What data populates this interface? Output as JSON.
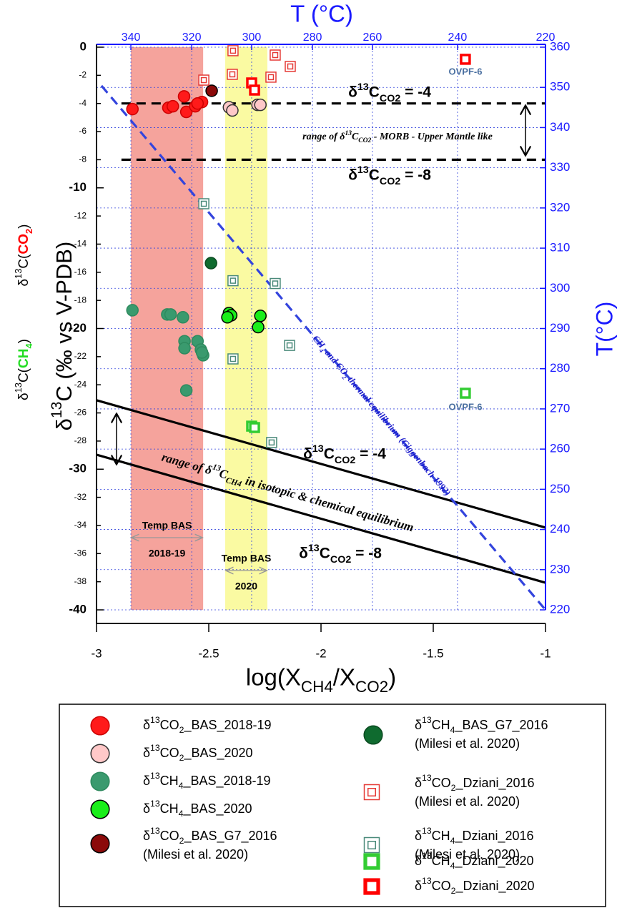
{
  "chart_data": {
    "type": "scatter",
    "x_label": "log(XCH4/XCO2)",
    "y_label": "δ13C (‰ vs V-PDB)",
    "y_label_ch4": [
      "δ13C(",
      "CH4",
      ")"
    ],
    "y_label_co2": [
      "δ13C(",
      "CO2",
      ")"
    ],
    "x2_label": "T (°C)",
    "y2_label": "T(°C)",
    "xlim": [
      -3,
      -1
    ],
    "xticks": [
      -3,
      -2.5,
      -2,
      -1.5,
      -1
    ],
    "ylim": [
      -40,
      0
    ],
    "yticks": [
      0,
      -2,
      -4,
      -6,
      -8,
      -10,
      -12,
      -14,
      -16,
      -18,
      -20,
      -22,
      -24,
      -26,
      -28,
      -30,
      -32,
      -34,
      -36,
      -38,
      -40
    ],
    "x2ticks": [
      {
        "value": -2.847,
        "label": "340"
      },
      {
        "value": -2.576,
        "label": "320"
      },
      {
        "value": -2.309,
        "label": "300"
      },
      {
        "value": -2.038,
        "label": "280"
      },
      {
        "value": -1.771,
        "label": "260"
      },
      {
        "value": -1.392,
        "label": "240"
      },
      {
        "value": -1.0,
        "label": "220"
      }
    ],
    "y2lim": [
      220,
      360
    ],
    "y2ticks": [
      220,
      230,
      240,
      250,
      260,
      270,
      280,
      290,
      300,
      310,
      320,
      330,
      340,
      350,
      360
    ],
    "grid": true,
    "bands": [
      {
        "x": [
          -2.847,
          -2.525
        ],
        "color": "#f5a39c",
        "label": [
          "Temp BAS",
          "2018-19"
        ]
      },
      {
        "x": [
          -2.427,
          -2.239
        ],
        "color": "#fafaa2",
        "label": [
          "Temp BAS",
          "2020"
        ]
      }
    ],
    "reference_lines": [
      {
        "x": [
          -2.889,
          -1
        ],
        "y": [
          -4,
          -4
        ],
        "color": "#000000",
        "style": "dashed"
      },
      {
        "x": [
          -2.889,
          -1
        ],
        "y": [
          -8,
          -8
        ],
        "color": "#000000",
        "style": "dashed"
      },
      {
        "x": [
          -3,
          -1
        ],
        "y": [
          -25.1,
          -34.15
        ],
        "color": "#000000",
        "style": "solid"
      },
      {
        "x": [
          -3,
          -1
        ],
        "y": [
          -28.97,
          -38.07
        ],
        "color": "#000000",
        "style": "solid"
      },
      {
        "x": [
          -2.978,
          -1
        ],
        "y": [
          -2.74,
          -40
        ],
        "color": "#3344dd",
        "style": "dashed"
      }
    ],
    "annotations": [
      "δ13CCO2 = -4",
      "range of δ13CCO2 - MORB - Upper Mantle like",
      "δ13CCO2 = -8",
      "δ13CCO2 = -4",
      "δ13CCO2 = -8",
      "range of δ13CCH4 in isotopic & chemical equilibrium",
      "CH4 and CO2 thermal equilibrium (Giggenbach 1992)",
      "OVPF-6",
      "OVPF-6"
    ],
    "series": [
      {
        "name": "δ13CO2_BAS_2018-19",
        "marker": "circle",
        "color": "#ff1a1a",
        "edgecolor": "#cc0000",
        "x": [
          -2.84,
          -2.68,
          -2.66,
          -2.61,
          -2.6,
          -2.56,
          -2.53,
          -2.55
        ],
        "y": [
          -4.4,
          -4.3,
          -4.2,
          -3.5,
          -4.6,
          -4.2,
          -3.9,
          -4.0
        ]
      },
      {
        "name": "δ13CO2_BAS_2020",
        "marker": "circle",
        "color": "#ffc8c8",
        "edgecolor": "#333333",
        "x": [
          -2.41,
          -2.395,
          -2.283,
          -2.27
        ],
        "y": [
          -4.27,
          -4.5,
          -4.1,
          -4.1
        ]
      },
      {
        "name": "δ13CH4_BAS_2018-19",
        "marker": "circle",
        "color": "#3a9a6e",
        "edgecolor": "#2e8a5e",
        "x": [
          -2.84,
          -2.685,
          -2.67,
          -2.615,
          -2.608,
          -2.608,
          -2.55,
          -2.535,
          -2.525,
          -2.53,
          -2.6
        ],
        "y": [
          -18.7,
          -19.0,
          -19.0,
          -19.2,
          -20.9,
          -21.4,
          -20.9,
          -21.5,
          -21.9,
          -21.7,
          -24.4
        ]
      },
      {
        "name": "δ13CH4_BAS_2020",
        "marker": "circle",
        "color": "#1aee1a",
        "edgecolor": "#000000",
        "x": [
          -2.41,
          -2.4,
          -2.27,
          -2.28,
          -2.417
        ],
        "y": [
          -18.9,
          -19.06,
          -19.1,
          -19.9,
          -19.2
        ]
      },
      {
        "name": "δ13CO2_BAS_G7_2016",
        "reference": "(Milesi et al. 2020)",
        "marker": "circle",
        "color": "#8b0a0a",
        "edgecolor": "#000000",
        "x": [
          -2.487
        ],
        "y": [
          -3.1
        ]
      },
      {
        "name": "δ13CH4_BAS_G7_2016",
        "reference": "(Milesi et al. 2020)",
        "marker": "circle",
        "color": "#0f6b2f",
        "edgecolor": "#0a4a20",
        "x": [
          -2.49
        ],
        "y": [
          -15.35
        ]
      },
      {
        "name": "δ13CO2_Dziani_2016",
        "reference": "(Milesi et al. 2020)",
        "marker": "square-open",
        "color": "#e53935",
        "x": [
          -2.392,
          -2.204,
          -2.137,
          -2.395,
          -2.223,
          -2.522
        ],
        "y": [
          -0.25,
          -0.56,
          -1.37,
          -1.93,
          -2.13,
          -2.34
        ]
      },
      {
        "name": "δ13CH4_Dziani_2016",
        "reference": "(Milesi et al. 2020)",
        "marker": "square-open",
        "color": "#4a8a7a",
        "x": [
          -2.522,
          -2.392,
          -2.204,
          -2.14,
          -2.392,
          -2.22
        ],
        "y": [
          -11.13,
          -16.6,
          -16.8,
          -21.2,
          -22.16,
          -28.1
        ]
      },
      {
        "name": "δ13CH4_Dziani_2020",
        "marker": "square",
        "color": "#33cc33",
        "x": [
          -1.357,
          -2.309,
          -2.296
        ],
        "y": [
          -24.6,
          -26.94,
          -27.04
        ]
      },
      {
        "name": "δ13CO2_Dziani_2020",
        "marker": "square",
        "color": "#ff0000",
        "x": [
          -1.357,
          -2.309,
          -2.296
        ],
        "y": [
          -0.86,
          -2.54,
          -3.05
        ]
      }
    ]
  }
}
